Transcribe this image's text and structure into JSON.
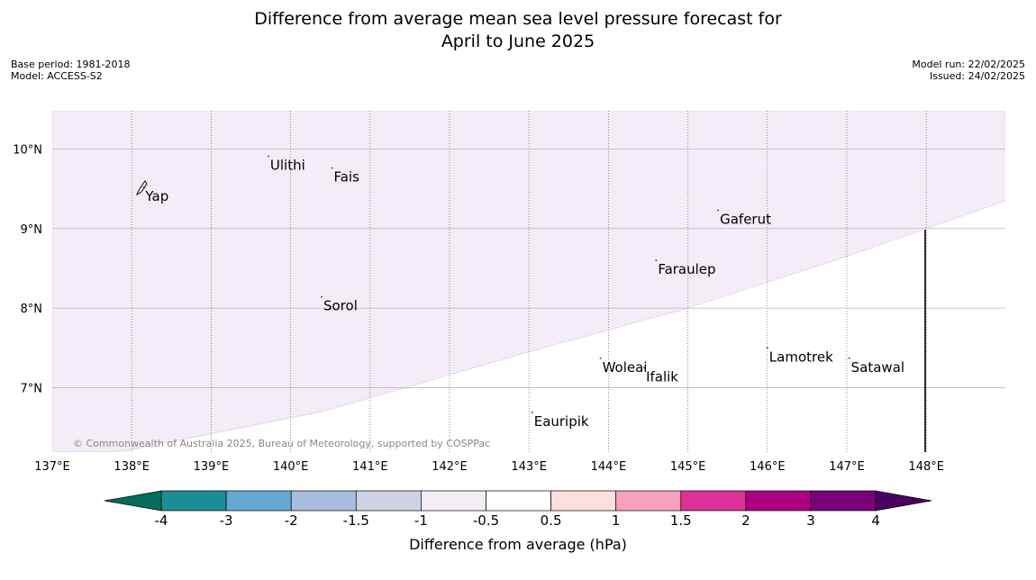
{
  "title_line1": "Difference from average mean sea level pressure forecast for",
  "title_line2": "April to June 2025",
  "base_period": "Base period: 1981-2018",
  "model": "Model: ACCESS-S2",
  "model_run": "Model run: 22/02/2025",
  "issued": "Issued: 24/02/2025",
  "copyright": "© Commonwealth of Australia 2025, Bureau of Meteorology, supported by COSPPac",
  "colorbar_label": "Difference from average (hPa)",
  "lon_ticks": [
    "137°E",
    "138°E",
    "139°E",
    "140°E",
    "141°E",
    "142°E",
    "143°E",
    "144°E",
    "145°E",
    "146°E",
    "147°E",
    "148°E"
  ],
  "lat_ticks": [
    "10°N",
    "9°N",
    "8°N",
    "7°N"
  ],
  "places": [
    {
      "name": "Yap",
      "lon": 138.15,
      "lat": 9.52
    },
    {
      "name": "Ulithi",
      "lon": 139.72,
      "lat": 9.91
    },
    {
      "name": "Fais",
      "lon": 140.52,
      "lat": 9.76
    },
    {
      "name": "Gaferut",
      "lon": 145.38,
      "lat": 9.23
    },
    {
      "name": "Faraulep",
      "lon": 144.6,
      "lat": 8.6
    },
    {
      "name": "Sorol",
      "lon": 140.39,
      "lat": 8.14
    },
    {
      "name": "Lamotrek",
      "lon": 146.0,
      "lat": 7.5
    },
    {
      "name": "Satawal",
      "lon": 147.03,
      "lat": 7.37
    },
    {
      "name": "Woleai",
      "lon": 143.9,
      "lat": 7.37
    },
    {
      "name": "Ifalik",
      "lon": 144.45,
      "lat": 7.25
    },
    {
      "name": "Eauripik",
      "lon": 143.04,
      "lat": 6.69
    }
  ],
  "colorbar": {
    "tick_labels": [
      "-4",
      "-3",
      "-2",
      "-1.5",
      "-1",
      "-0.5",
      "0.5",
      "1",
      "1.5",
      "2",
      "3",
      "4"
    ],
    "colors": [
      "#1a9095",
      "#65a8d1",
      "#a8bcde",
      "#d1d1e6",
      "#f4ecf6",
      "#ffffff",
      "#fedfe0",
      "#f8a0bd",
      "#dc3297",
      "#ac0082",
      "#7a0079"
    ],
    "under_color": "#036c5a",
    "over_color": "#4a0060"
  },
  "field": {
    "category": "-1 to -0.5",
    "color": "#f4ecf6",
    "boundary": [
      {
        "lon": 137.9,
        "lat": 6.2
      },
      {
        "lon": 140.4,
        "lat": 6.7
      },
      {
        "lon": 143.0,
        "lat": 7.45
      },
      {
        "lon": 145.0,
        "lat": 8.0
      },
      {
        "lon": 147.0,
        "lat": 8.65
      },
      {
        "lon": 149.0,
        "lat": 9.35
      }
    ]
  }
}
